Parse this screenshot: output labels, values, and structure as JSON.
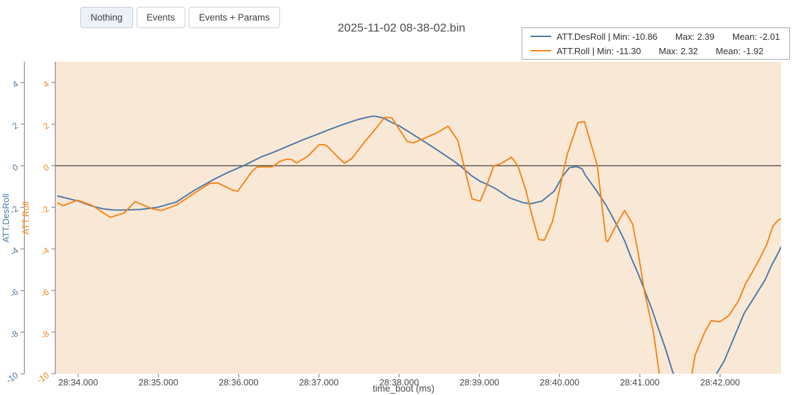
{
  "toolbar": {
    "buttons": [
      {
        "label": "Nothing",
        "active": true
      },
      {
        "label": "Events",
        "active": false
      },
      {
        "label": "Events + Params",
        "active": false
      }
    ]
  },
  "title": "2025-11-02 08-38-02.bin",
  "legend": {
    "items": [
      {
        "name": "ATT.DesRoll",
        "min": -10.86,
        "max": 2.39,
        "mean": -2.01,
        "name_label": "ATT.DesRoll | Min: -10.86",
        "max_label": "Max: 2.39",
        "mean_label": "Mean: -2.01",
        "color": "#4c78a8"
      },
      {
        "name": "ATT.Roll",
        "min": -11.3,
        "max": 2.32,
        "mean": -1.92,
        "name_label": "ATT.Roll | Min: -11.30",
        "max_label": "Max: 2.32",
        "mean_label": "Mean: -1.92",
        "color": "#f58518"
      }
    ]
  },
  "chart_data": {
    "type": "line",
    "title": "2025-11-02 08-38-02.bin",
    "xlabel": "time_boot (ms)",
    "x_tick_labels": [
      "28:34.000",
      "28:35.000",
      "28:36.000",
      "28:37.000",
      "28:38.000",
      "28:39.000",
      "28:40.000",
      "28:41.000",
      "28:42.000"
    ],
    "x_tick_values": [
      0,
      1,
      2,
      3,
      4,
      5,
      6,
      7,
      8
    ],
    "xlim": [
      -0.29,
      8.76
    ],
    "ylim": [
      -10,
      5
    ],
    "y_ticks": [
      4,
      2,
      0,
      -2,
      -4,
      -6,
      -8,
      -10
    ],
    "grid": true,
    "legend_position": "top-right",
    "axes": [
      {
        "label": "ATT.DesRoll",
        "color": "#4c78a8"
      },
      {
        "label": "ATT.Roll",
        "color": "#f58518"
      }
    ],
    "colors": {
      "plot_bg": "#f9e8d6",
      "grid": "#f6ecdf",
      "zero_line": "#55554f",
      "axis_line": "#8a8a8a",
      "tick_text": "#474747"
    },
    "series": [
      {
        "name": "ATT.DesRoll",
        "color": "#4c78a8",
        "points": [
          [
            -0.26,
            -1.45
          ],
          [
            0.0,
            -1.7
          ],
          [
            0.18,
            -1.95
          ],
          [
            0.31,
            -2.07
          ],
          [
            0.44,
            -2.13
          ],
          [
            0.59,
            -2.13
          ],
          [
            0.78,
            -2.1
          ],
          [
            0.99,
            -2.0
          ],
          [
            1.22,
            -1.75
          ],
          [
            1.45,
            -1.18
          ],
          [
            1.68,
            -0.68
          ],
          [
            1.85,
            -0.35
          ],
          [
            2.06,
            0.0
          ],
          [
            2.28,
            0.42
          ],
          [
            2.45,
            0.67
          ],
          [
            2.62,
            0.95
          ],
          [
            2.79,
            1.23
          ],
          [
            2.96,
            1.48
          ],
          [
            3.13,
            1.74
          ],
          [
            3.3,
            1.98
          ],
          [
            3.47,
            2.2
          ],
          [
            3.6,
            2.33
          ],
          [
            3.69,
            2.39
          ],
          [
            3.8,
            2.3
          ],
          [
            3.9,
            2.1
          ],
          [
            4.0,
            1.92
          ],
          [
            4.24,
            1.34
          ],
          [
            4.47,
            0.77
          ],
          [
            4.67,
            0.25
          ],
          [
            4.76,
            0.0
          ],
          [
            4.9,
            -0.47
          ],
          [
            5.01,
            -0.75
          ],
          [
            5.1,
            -0.9
          ],
          [
            5.21,
            -1.12
          ],
          [
            5.38,
            -1.55
          ],
          [
            5.55,
            -1.78
          ],
          [
            5.65,
            -1.82
          ],
          [
            5.78,
            -1.7
          ],
          [
            5.93,
            -1.23
          ],
          [
            6.04,
            -0.5
          ],
          [
            6.12,
            -0.1
          ],
          [
            6.21,
            -0.04
          ],
          [
            6.28,
            -0.15
          ],
          [
            6.32,
            -0.45
          ],
          [
            6.46,
            -1.2
          ],
          [
            6.58,
            -1.9
          ],
          [
            6.72,
            -2.9
          ],
          [
            6.81,
            -3.6
          ],
          [
            6.89,
            -4.4
          ],
          [
            6.98,
            -5.2
          ],
          [
            7.06,
            -6.0
          ],
          [
            7.15,
            -6.9
          ],
          [
            7.23,
            -7.8
          ],
          [
            7.32,
            -8.8
          ],
          [
            7.4,
            -9.8
          ],
          [
            7.47,
            -10.6
          ],
          [
            7.65,
            -10.86
          ],
          [
            7.85,
            -10.6
          ],
          [
            7.94,
            -10.1
          ],
          [
            8.05,
            -9.4
          ],
          [
            8.17,
            -8.3
          ],
          [
            8.3,
            -7.1
          ],
          [
            8.43,
            -6.3
          ],
          [
            8.56,
            -5.5
          ],
          [
            8.64,
            -4.8
          ],
          [
            8.71,
            -4.3
          ],
          [
            8.76,
            -3.9
          ]
        ]
      },
      {
        "name": "ATT.Roll",
        "color": "#f58518",
        "points": [
          [
            -0.26,
            -1.78
          ],
          [
            -0.19,
            -1.92
          ],
          [
            -0.01,
            -1.66
          ],
          [
            0.17,
            -1.9
          ],
          [
            0.4,
            -2.48
          ],
          [
            0.57,
            -2.28
          ],
          [
            0.71,
            -1.73
          ],
          [
            0.93,
            -2.08
          ],
          [
            1.04,
            -2.15
          ],
          [
            1.22,
            -1.9
          ],
          [
            1.45,
            -1.32
          ],
          [
            1.64,
            -0.85
          ],
          [
            1.74,
            -0.83
          ],
          [
            1.93,
            -1.18
          ],
          [
            1.99,
            -1.22
          ],
          [
            2.17,
            -0.25
          ],
          [
            2.23,
            -0.06
          ],
          [
            2.42,
            -0.05
          ],
          [
            2.51,
            0.2
          ],
          [
            2.6,
            0.32
          ],
          [
            2.66,
            0.3
          ],
          [
            2.72,
            0.13
          ],
          [
            2.86,
            0.45
          ],
          [
            3.0,
            1.0
          ],
          [
            3.06,
            1.02
          ],
          [
            3.11,
            0.92
          ],
          [
            3.22,
            0.48
          ],
          [
            3.32,
            0.12
          ],
          [
            3.41,
            0.35
          ],
          [
            3.56,
            1.1
          ],
          [
            3.7,
            1.75
          ],
          [
            3.82,
            2.32
          ],
          [
            3.91,
            2.3
          ],
          [
            4.1,
            1.17
          ],
          [
            4.18,
            1.1
          ],
          [
            4.39,
            1.45
          ],
          [
            4.47,
            1.58
          ],
          [
            4.61,
            1.9
          ],
          [
            4.73,
            1.23
          ],
          [
            4.91,
            -1.6
          ],
          [
            5.01,
            -1.7
          ],
          [
            5.08,
            -1.07
          ],
          [
            5.18,
            0.0
          ],
          [
            5.27,
            0.1
          ],
          [
            5.4,
            0.41
          ],
          [
            5.48,
            0.0
          ],
          [
            5.58,
            -1.18
          ],
          [
            5.65,
            -2.3
          ],
          [
            5.74,
            -3.55
          ],
          [
            5.81,
            -3.58
          ],
          [
            5.91,
            -2.7
          ],
          [
            5.98,
            -1.5
          ],
          [
            6.04,
            -0.4
          ],
          [
            6.1,
            0.6
          ],
          [
            6.23,
            2.08
          ],
          [
            6.31,
            2.12
          ],
          [
            6.47,
            0.0
          ],
          [
            6.58,
            -3.6
          ],
          [
            6.6,
            -3.65
          ],
          [
            6.7,
            -2.9
          ],
          [
            6.81,
            -2.15
          ],
          [
            6.91,
            -2.8
          ],
          [
            6.98,
            -4.2
          ],
          [
            7.06,
            -6.1
          ],
          [
            7.17,
            -8.0
          ],
          [
            7.25,
            -10.2
          ],
          [
            7.45,
            -11.3
          ],
          [
            7.64,
            -10.2
          ],
          [
            7.69,
            -9.1
          ],
          [
            7.81,
            -8.0
          ],
          [
            7.89,
            -7.45
          ],
          [
            8.0,
            -7.5
          ],
          [
            8.11,
            -7.2
          ],
          [
            8.23,
            -6.5
          ],
          [
            8.32,
            -5.65
          ],
          [
            8.39,
            -5.2
          ],
          [
            8.49,
            -4.5
          ],
          [
            8.58,
            -3.8
          ],
          [
            8.66,
            -2.9
          ],
          [
            8.73,
            -2.6
          ],
          [
            8.77,
            -2.55
          ]
        ]
      }
    ]
  }
}
